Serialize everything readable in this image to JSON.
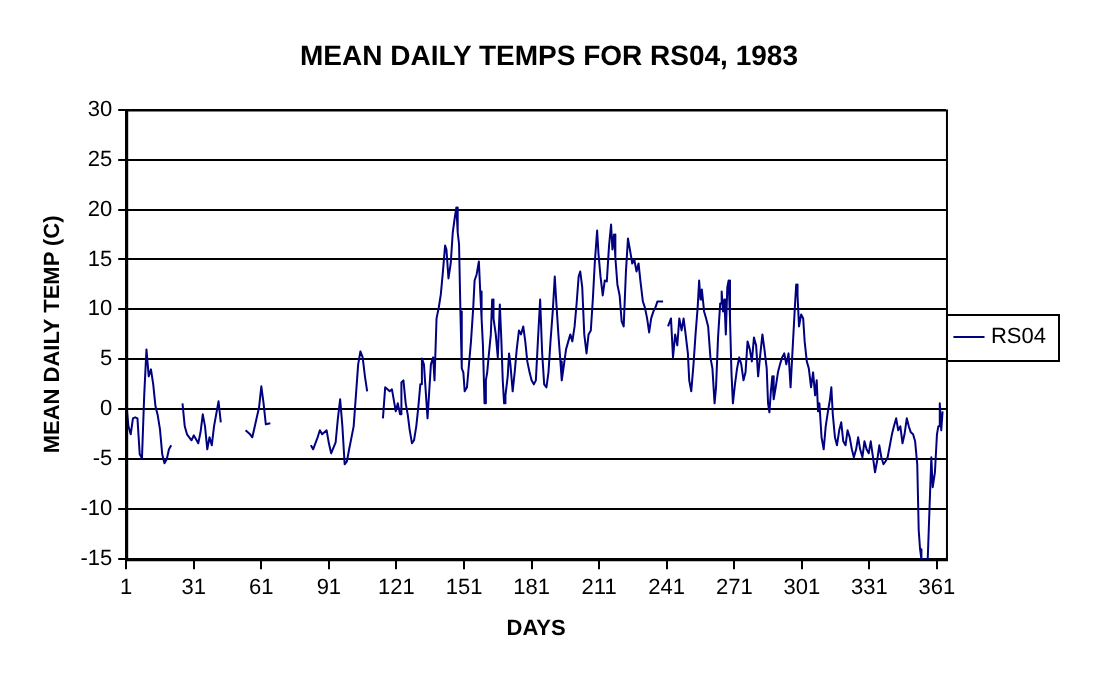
{
  "chart_data": {
    "type": "line",
    "title": "MEAN DAILY TEMPS FOR RS04, 1983",
    "xlabel": "DAYS",
    "ylabel": "MEAN DAILY TEMP (C)",
    "x": [
      1,
      2,
      3,
      4,
      5,
      6,
      7,
      8,
      9,
      10,
      11,
      12,
      13,
      14,
      15,
      16,
      17,
      18,
      19,
      20,
      21,
      24,
      26,
      27,
      28,
      29,
      30,
      31,
      33,
      34,
      35,
      36,
      37,
      38,
      39,
      40,
      42,
      43,
      48,
      54,
      56,
      57,
      59,
      60,
      61,
      62,
      63,
      65,
      75,
      83,
      84,
      86,
      87,
      88,
      90,
      91,
      92,
      94,
      95,
      96,
      97,
      98,
      99,
      100,
      102,
      103,
      104,
      105,
      106,
      107,
      108,
      111,
      115,
      116,
      117,
      118,
      119,
      120.7,
      121.6,
      122.6,
      123.2,
      124.1,
      125.1,
      126,
      126.9,
      127.9,
      128.8,
      129.8,
      130.7,
      131.6,
      132.3,
      133.2,
      133.8,
      134.8,
      136.3,
      137.3,
      137.9,
      138.8,
      139.8,
      140.7,
      141.6,
      142.6,
      143.2,
      144.1,
      145.1,
      146,
      146.9,
      147.6,
      148.2,
      148.8,
      149.4,
      150,
      150.7,
      151.3,
      152.3,
      153.2,
      154.1,
      155.1,
      155.7,
      156.6,
      157.6,
      158.2,
      158.8,
      159.4,
      160.1,
      160.7,
      161.3,
      161.9,
      162.9,
      163.5,
      164.1,
      165.1,
      166,
      166.9,
      167.6,
      168.2,
      168.8,
      169.4,
      170.4,
      171,
      171.6,
      172.6,
      173.5,
      174.4,
      175.4,
      176.3,
      177.3,
      178.2,
      179.1,
      180.1,
      181,
      182,
      182.9,
      183.8,
      184.8,
      185.7,
      186.6,
      187.6,
      188.5,
      189.4,
      190.4,
      191.3,
      191.9,
      192.9,
      193.8,
      194.4,
      195.4,
      196.3,
      197.3,
      198.2,
      199.1,
      200.1,
      201,
      201.9,
      202.6,
      203.5,
      204.4,
      205.4,
      206.3,
      207.3,
      208.2,
      209.1,
      210.1,
      210.7,
      211.6,
      212.6,
      213.5,
      214.4,
      215.4,
      216.3,
      216.9,
      217.6,
      218.2,
      219.1,
      220.1,
      221,
      221.9,
      222.9,
      223.8,
      224.8,
      225.7,
      226.6,
      227.6,
      228.5,
      229.4,
      230.4,
      231.3,
      232.3,
      233.2,
      234.1,
      235.1,
      236,
      236.9,
      239.4,
      240.5,
      241.6,
      242.9,
      243.8,
      244.75,
      245.7,
      246.6,
      247.6,
      248.5,
      249.4,
      250.4,
      251,
      251.9,
      252.9,
      253.8,
      254.75,
      255.4,
      256,
      256.6,
      257.6,
      258.5,
      259.4,
      260.4,
      261.3,
      262.25,
      262.9,
      263.8,
      264.75,
      265.4,
      266,
      266.6,
      267.25,
      267.9,
      268.5,
      269.1,
      269.75,
      270.4,
      271.3,
      272.25,
      273.2,
      274.1,
      275.1,
      276,
      276.9,
      277.9,
      278.8,
      279.75,
      280.7,
      281.6,
      282.6,
      283.5,
      284.4,
      285.4,
      286,
      286.6,
      287.25,
      287.9,
      288.5,
      289.4,
      290.4,
      291.3,
      292.25,
      293.2,
      294.1,
      295.1,
      296,
      296.9,
      297.9,
      298.5,
      299.1,
      299.75,
      300.7,
      301.6,
      302.25,
      303.2,
      304.1,
      305.1,
      306,
      306.9,
      307.6,
      308.2,
      308.8,
      309.75,
      310.7,
      311.6,
      312.6,
      313.5,
      314.1,
      314.75,
      315.7,
      316.6,
      317.6,
      318.5,
      319.4,
      320.4,
      321.3,
      322.25,
      323.2,
      324.1,
      325.1,
      326,
      326.9,
      327.9,
      328.8,
      329.75,
      330.7,
      331.6,
      332.6,
      333.5,
      334.4,
      335.4,
      336.3,
      337.25,
      338.2,
      339.1,
      340.1,
      341,
      341.9,
      342.9,
      343.8,
      344.75,
      345.7,
      346.6,
      347.6,
      348.5,
      349.4,
      350.4,
      351.3,
      352.25,
      352.9,
      353.5,
      354.1,
      355.1,
      356,
      356.9,
      357.9,
      358.5,
      359.1,
      360.1,
      361,
      361.6,
      362.25,
      362.9,
      363.5
    ],
    "series": [
      {
        "name": "RS04",
        "color": "#000080",
        "values": [
          0.6,
          -1.7,
          -2.5,
          -0.9,
          -0.8,
          -0.9,
          -4.5,
          -4.9,
          1.4,
          6,
          3.3,
          4,
          2.5,
          0.3,
          -0.6,
          -2,
          -4.5,
          -5.4,
          -5,
          -4,
          -3.6,
          null,
          0.6,
          -1.7,
          -2.5,
          -2.8,
          -3.1,
          -2.6,
          -3.4,
          -2.3,
          -0.5,
          -1.7,
          -4,
          -2.8,
          -3.6,
          -1.7,
          0.8,
          -1.3,
          null,
          -2.1,
          -2.5,
          -2.8,
          -0.8,
          0.2,
          2.3,
          0.6,
          -1.5,
          -1.4,
          null,
          -3.6,
          -4,
          -2.8,
          -2.1,
          -2.5,
          -2.1,
          -3.4,
          -4.4,
          -3.3,
          -0.9,
          1,
          -1.7,
          -5.5,
          -5.2,
          -4,
          -1.7,
          1.4,
          4.5,
          5.8,
          5.2,
          3.3,
          1.8,
          null,
          -0.9,
          2.2,
          2.0,
          1.8,
          2.0,
          -0.2,
          0.6,
          -0.5,
          2.7,
          2.9,
          0.6,
          -0.5,
          -2.1,
          -3.4,
          -3.1,
          -1.7,
          0.2,
          2.5,
          5.1,
          4.5,
          2.5,
          -0.9,
          4.5,
          5.2,
          2.9,
          9.1,
          10.2,
          11.5,
          13.7,
          16.4,
          16.0,
          13.1,
          14.6,
          17.7,
          19.2,
          20.2,
          17.7,
          16.5,
          9.8,
          4.1,
          3.7,
          1.8,
          2.2,
          4.5,
          6.8,
          10.2,
          12.9,
          13.5,
          14.8,
          11.8,
          9.1,
          6.4,
          0.6,
          2.9,
          3.7,
          5.2,
          7.5,
          11.0,
          9.1,
          7.5,
          5.2,
          10.5,
          6.8,
          2.9,
          0.6,
          1.4,
          3.3,
          5.6,
          4.5,
          1.8,
          3.7,
          6.0,
          7.9,
          7.5,
          8.3,
          6.8,
          4.8,
          3.7,
          2.9,
          2.5,
          2.9,
          6.8,
          11.0,
          5.6,
          2.5,
          2.2,
          3.7,
          6.8,
          9.8,
          13.3,
          11.0,
          7.5,
          4.8,
          2.9,
          4.5,
          6.0,
          6.8,
          7.5,
          6.8,
          8.3,
          10.6,
          13.3,
          13.8,
          12.2,
          7.5,
          5.6,
          7.5,
          7.9,
          11.0,
          14.8,
          17.9,
          15.6,
          13.3,
          11.4,
          12.9,
          12.8,
          16.4,
          18.5,
          16.0,
          17.5,
          15.2,
          12.5,
          11.4,
          8.8,
          8.3,
          13.8,
          17.1,
          15.8,
          14.6,
          15.0,
          13.8,
          14.6,
          12.7,
          10.8,
          10.2,
          9.1,
          7.7,
          9.1,
          9.8,
          10.2,
          10.8,
          10.8,
          null,
          8.3,
          9.1,
          5.2,
          7.5,
          6.4,
          9.1,
          7.9,
          9.1,
          7.5,
          5.6,
          2.9,
          1.8,
          4.5,
          7.5,
          10.2,
          12.9,
          11.0,
          12.0,
          9.8,
          9.1,
          8.3,
          5.2,
          4.1,
          0.6,
          2.2,
          7.2,
          10.6,
          11.8,
          9.8,
          11.0,
          7.5,
          12.2,
          12.9,
          9.1,
          3.7,
          0.6,
          2.5,
          4.1,
          5.2,
          4.5,
          2.9,
          3.7,
          6.8,
          6.0,
          4.8,
          7.2,
          6.4,
          3.3,
          5.6,
          7.5,
          6.0,
          4.1,
          0.6,
          -0.3,
          1.8,
          3.3,
          1.0,
          2.2,
          3.7,
          4.5,
          5.2,
          5.6,
          4.5,
          5.6,
          2.2,
          6.0,
          10.2,
          12.5,
          11.4,
          8.3,
          9.5,
          9.1,
          6.8,
          4.8,
          4.1,
          2.2,
          3.7,
          1.4,
          2.9,
          -0.2,
          0.6,
          -2.8,
          -4.0,
          -1.7,
          -0.2,
          1.0,
          2.2,
          -0.5,
          -2.8,
          -3.6,
          -2.1,
          -1.3,
          -3.2,
          -3.6,
          -2.1,
          -2.8,
          -4.0,
          -4.8,
          -4.0,
          -2.8,
          -4.0,
          -4.8,
          -3.2,
          -4.0,
          -4.4,
          -3.2,
          -4.8,
          -6.3,
          -5.2,
          -3.6,
          -4.8,
          -5.5,
          -5.2,
          -4.8,
          -3.6,
          -2.5,
          -1.7,
          -0.9,
          -2.1,
          -1.7,
          -3.4,
          -2.5,
          -0.9,
          -1.7,
          -2.3,
          -2.5,
          -3.2,
          -5.5,
          -12.1,
          -14,
          -15,
          -15,
          -15,
          -15,
          -8.6,
          -4.8,
          -7.8,
          -6.3,
          -2.5,
          -1.7,
          0.6,
          -2.1,
          -0.2
        ]
      }
    ],
    "xlim": [
      1,
      365
    ],
    "xticks": [
      1,
      31,
      61,
      91,
      121,
      151,
      181,
      211,
      241,
      271,
      301,
      331,
      361
    ],
    "ylim": [
      -15,
      30
    ],
    "yticks": [
      -15,
      -10,
      -5,
      0,
      5,
      10,
      15,
      20,
      25,
      30
    ],
    "grid": "y",
    "legend": "right"
  }
}
